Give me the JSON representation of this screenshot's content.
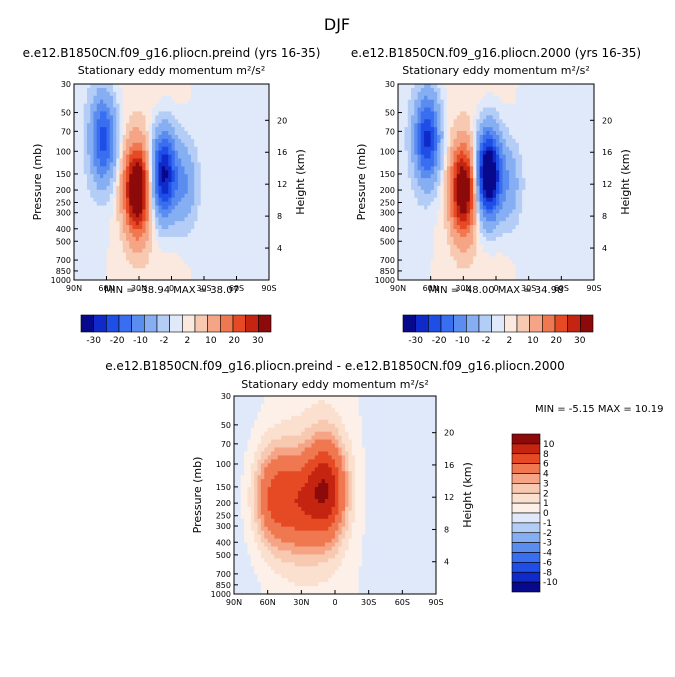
{
  "figure_title": "DJF",
  "chart_data": [
    {
      "type": "heatmap",
      "title": "e.e12.B1850CN.f09_g16.pliocn.preind (yrs 16-35)",
      "subtitle": "Stationary eddy momentum",
      "units": "m²/s²",
      "ylabel": "Pressure (mb)",
      "ylabel_right": "Height (km)",
      "xticks": [
        "90N",
        "60N",
        "30N",
        "0",
        "30S",
        "60S",
        "90S"
      ],
      "yticks": [
        30,
        50,
        70,
        100,
        150,
        200,
        250,
        300,
        400,
        500,
        700,
        850,
        1000
      ],
      "yticks_right": [
        4,
        8,
        12,
        16,
        20
      ],
      "ylim": [
        1000,
        30
      ],
      "xlim": [
        90,
        -90
      ],
      "stats": {
        "min_label": "MIN =",
        "min": "-38.94",
        "max_label": "MAX =",
        "max": "38.07"
      },
      "features": [
        {
          "lat": 63,
          "p": 80,
          "value": -22
        },
        {
          "lat": 32,
          "p": 200,
          "value": 36
        },
        {
          "lat": 7,
          "p": 150,
          "value": -32
        },
        {
          "lat": -12,
          "p": 180,
          "value": -10
        }
      ],
      "colorbar": {
        "labels": [
          "-30",
          "-20",
          "-10",
          "-2",
          "2",
          "10",
          "20",
          "30"
        ],
        "orientation": "horizontal"
      }
    },
    {
      "type": "heatmap",
      "title": "e.e12.B1850CN.f09_g16.pliocn.2000 (yrs 16-35)",
      "subtitle": "Stationary eddy momentum",
      "units": "m²/s²",
      "ylabel": "Pressure (mb)",
      "ylabel_right": "Height (km)",
      "xticks": [
        "90N",
        "60N",
        "30N",
        "0",
        "30S",
        "60S",
        "90S"
      ],
      "yticks": [
        30,
        50,
        70,
        100,
        150,
        200,
        250,
        300,
        400,
        500,
        700,
        850,
        1000
      ],
      "yticks_right": [
        4,
        8,
        12,
        16,
        20
      ],
      "ylim": [
        1000,
        30
      ],
      "xlim": [
        90,
        -90
      ],
      "stats": {
        "min_label": "MIN =",
        "min": "-48.00",
        "max_label": "MAX =",
        "max": "34.98"
      },
      "features": [
        {
          "lat": 63,
          "p": 80,
          "value": -26
        },
        {
          "lat": 30,
          "p": 200,
          "value": 33
        },
        {
          "lat": 7,
          "p": 150,
          "value": -42
        },
        {
          "lat": -12,
          "p": 180,
          "value": -8
        }
      ],
      "colorbar": {
        "labels": [
          "-30",
          "-20",
          "-10",
          "-2",
          "2",
          "10",
          "20",
          "30"
        ],
        "orientation": "horizontal"
      }
    },
    {
      "type": "heatmap",
      "title": "e.e12.B1850CN.f09_g16.pliocn.preind - e.e12.B1850CN.f09_g16.pliocn.2000",
      "subtitle": "Stationary eddy momentum",
      "units": "m²/s²",
      "ylabel": "Pressure (mb)",
      "ylabel_right": "Height (km)",
      "xticks": [
        "90N",
        "60N",
        "30N",
        "0",
        "30S",
        "60S",
        "90S"
      ],
      "yticks": [
        30,
        50,
        70,
        100,
        150,
        200,
        250,
        300,
        400,
        500,
        700,
        850,
        1000
      ],
      "yticks_right": [
        4,
        8,
        12,
        16,
        20
      ],
      "ylim": [
        1000,
        30
      ],
      "xlim": [
        90,
        -90
      ],
      "stats": {
        "min_label": "MIN =",
        "min": "-5.15",
        "max_label": "MAX =",
        "max": "10.19"
      },
      "features": [
        {
          "lat": 55,
          "p": 180,
          "value": 6
        },
        {
          "lat": 32,
          "p": 200,
          "value": 5
        },
        {
          "lat": 8,
          "p": 160,
          "value": 9
        }
      ],
      "colorbar": {
        "labels": [
          "10",
          "8",
          "6",
          "4",
          "3",
          "2",
          "1",
          "0",
          "-1",
          "-2",
          "-3",
          "-4",
          "-6",
          "-8",
          "-10"
        ],
        "orientation": "vertical"
      }
    }
  ],
  "colors": {
    "top_scale": [
      "#08088c",
      "#0f2ac8",
      "#1e4ee6",
      "#3a6ef0",
      "#5b8cf0",
      "#86aef2",
      "#b4cdf6",
      "#dfe9fa",
      "#fbe9df",
      "#f8c9b1",
      "#f5a485",
      "#f07850",
      "#e54a24",
      "#c42410",
      "#8c0a0a"
    ],
    "diff_scale": [
      "#08088c",
      "#0f2ac8",
      "#1e4ee6",
      "#3a6ef0",
      "#5b8cf0",
      "#86aef2",
      "#b4cdf6",
      "#dfe9fa",
      "#fdf0e8",
      "#fbe0cf",
      "#f8c9b1",
      "#f5a485",
      "#f07850",
      "#e54a24",
      "#c42410",
      "#8c0a0a"
    ]
  }
}
